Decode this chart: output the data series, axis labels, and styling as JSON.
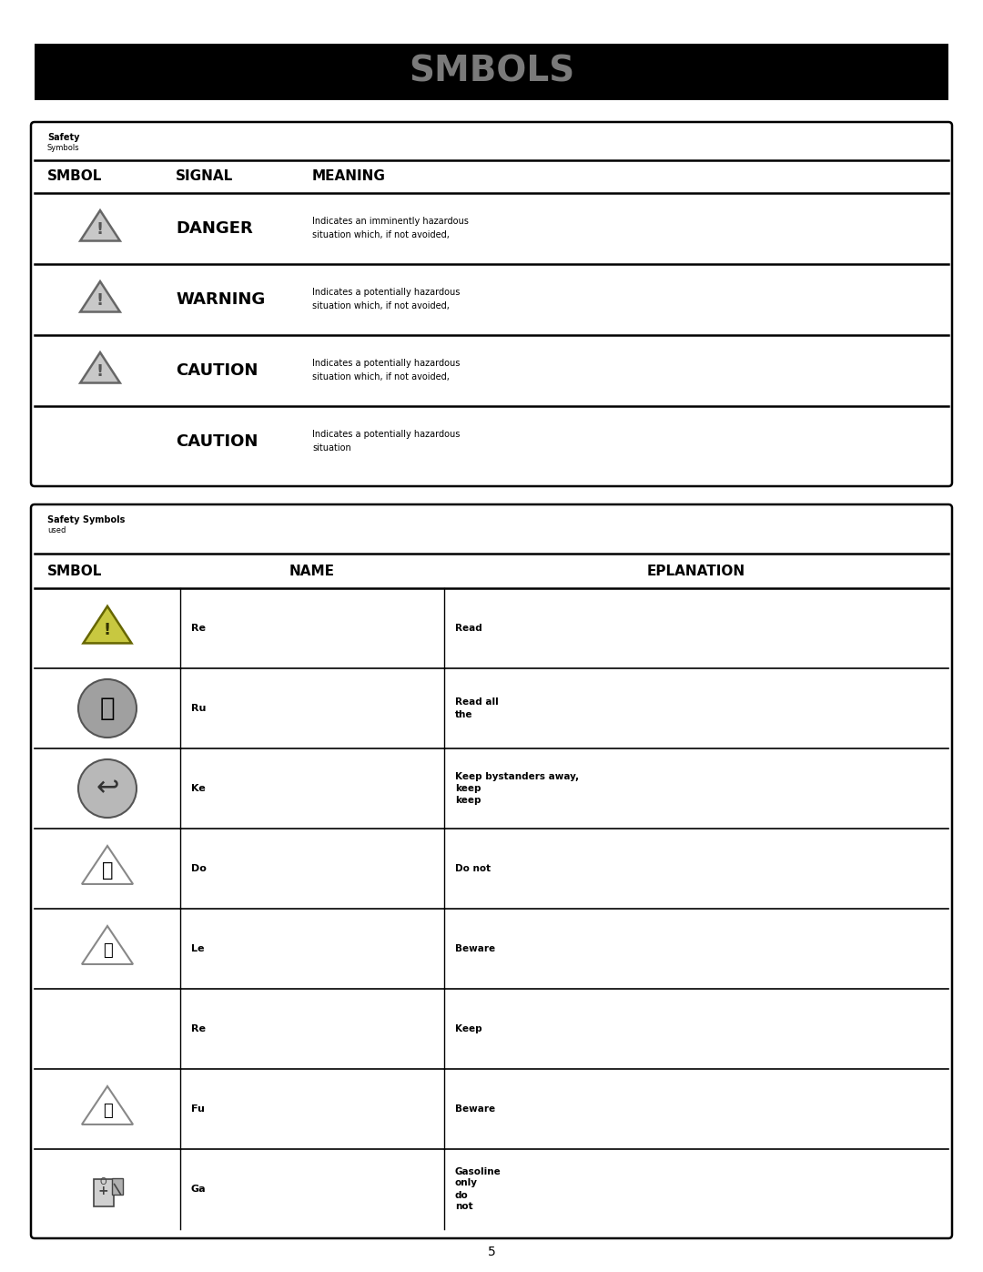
{
  "title": "SMBOLS",
  "title_bg": "#000000",
  "title_color": "#7a7a7a",
  "page_bg": "#ffffff",
  "table1_cols": [
    "SMBOL",
    "SIGNAL",
    "MEANING"
  ],
  "table1_rows": [
    {
      "signal": "DANGER",
      "has_icon": true,
      "m1": "Indicates an imminently hazardous",
      "m2": "situation which, if not avoided,"
    },
    {
      "signal": "WARNING",
      "has_icon": true,
      "m1": "Indicates a potentially hazardous",
      "m2": "situation which, if not avoided,"
    },
    {
      "signal": "CAUTION",
      "has_icon": true,
      "m1": "Indicates a potentially hazardous",
      "m2": "situation which, if not avoided,"
    },
    {
      "signal": "CAUTION",
      "has_icon": false,
      "m1": "Indicates a potentially hazardous",
      "m2": "situation"
    }
  ],
  "table2_header_line1": "Safety Symbols",
  "table2_header_line2": "used",
  "table2_cols": [
    "SMBOL",
    "NAME",
    "EPLANATION"
  ],
  "table2_rows": [
    {
      "name": "Re",
      "expl": [
        "Read"
      ],
      "icon_type": "warning_triangle_yellow"
    },
    {
      "name": "Ru",
      "expl": [
        "Read all",
        "the"
      ],
      "icon_type": "circle_person"
    },
    {
      "name": "Ke",
      "expl": [
        "Keep bystanders away,",
        "keep",
        "keep"
      ],
      "icon_type": "circle_arrow"
    },
    {
      "name": "Do",
      "expl": [
        "Do not"
      ],
      "icon_type": "tri_hand"
    },
    {
      "name": "Le",
      "expl": [
        "Beware"
      ],
      "icon_type": "tri_key"
    },
    {
      "name": "Re",
      "expl": [
        "Keep"
      ],
      "icon_type": "none"
    },
    {
      "name": "Fu",
      "expl": [
        "Beware"
      ],
      "icon_type": "tri_fuel_hand"
    },
    {
      "name": "Ga",
      "expl": [
        "Gasoline",
        "only",
        "do",
        "not"
      ],
      "icon_type": "fuel_pump"
    }
  ],
  "footer_text": "5"
}
